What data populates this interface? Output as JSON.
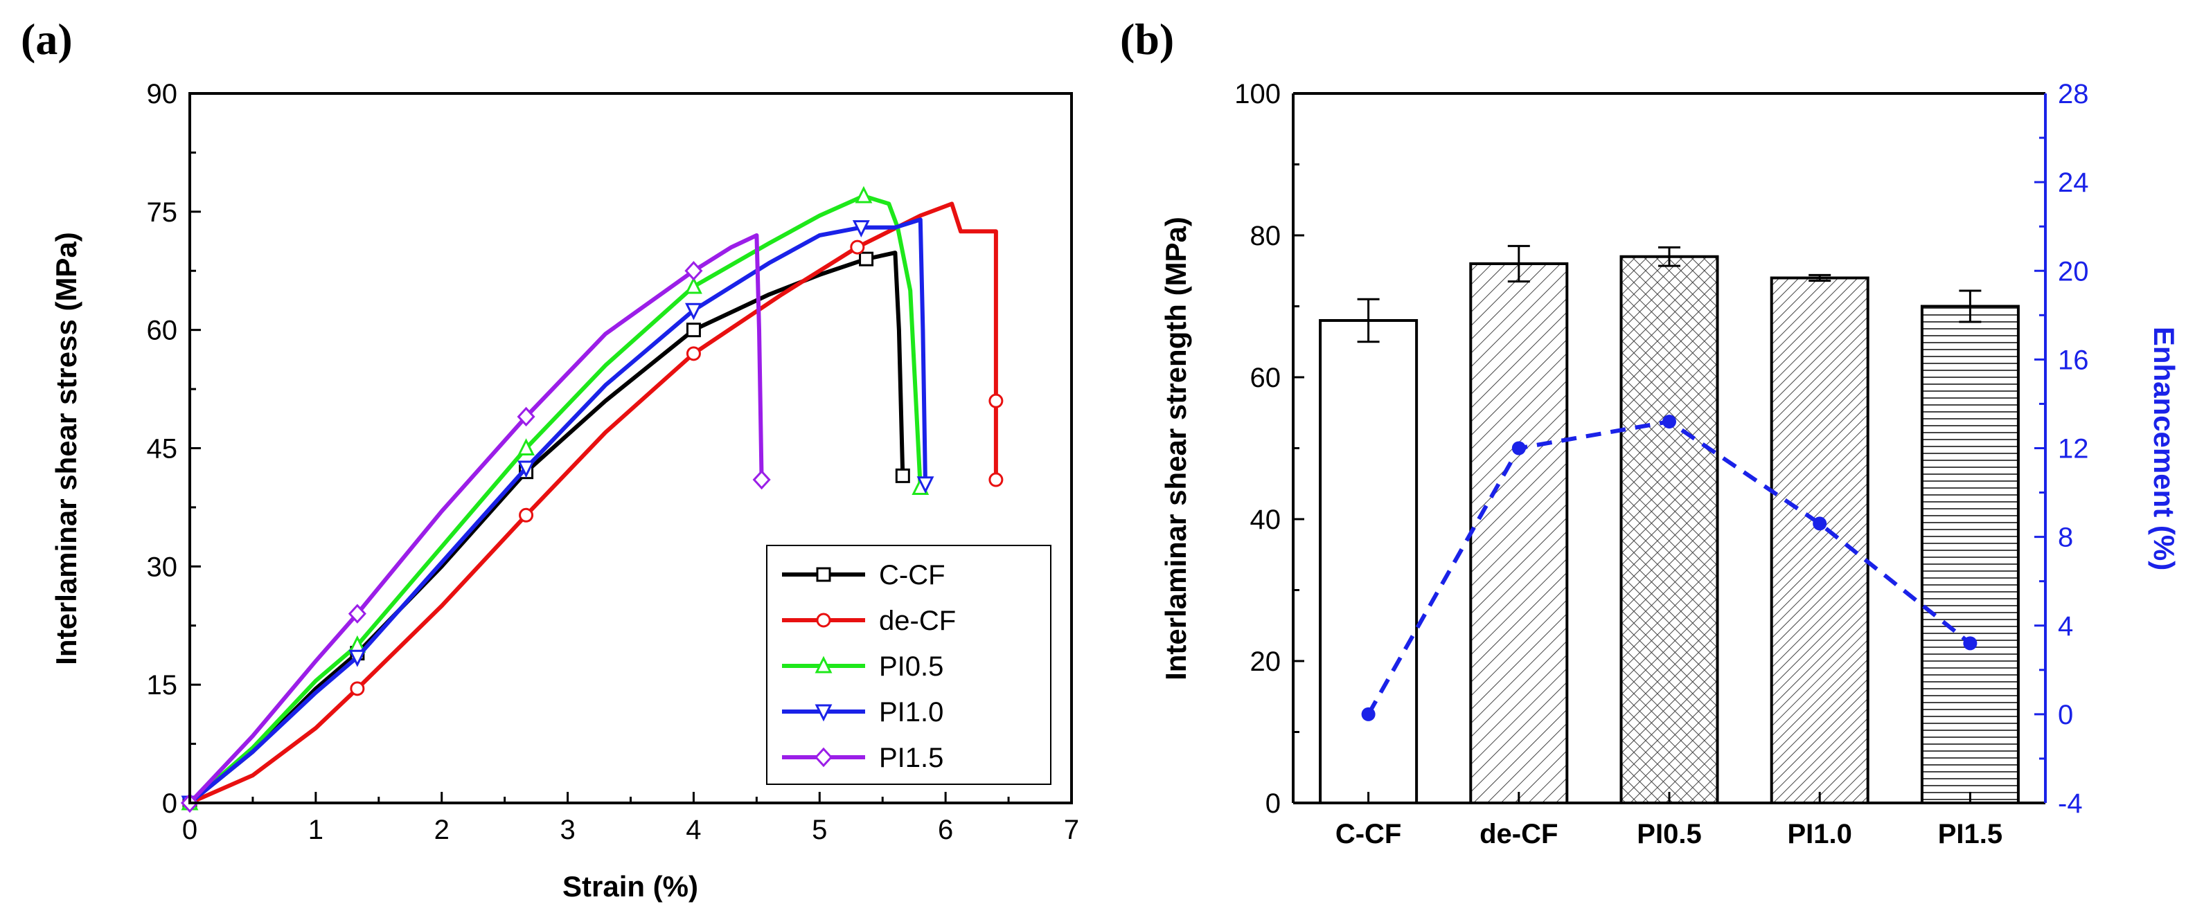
{
  "chart_data": [
    {
      "panel": "(a)",
      "type": "line",
      "xlabel": "Strain (%)",
      "ylabel": "Interlaminar shear stress (MPa)",
      "xlim": [
        0,
        7
      ],
      "ylim": [
        0,
        90
      ],
      "xticks": [
        0,
        1,
        2,
        3,
        4,
        5,
        6,
        7
      ],
      "yticks": [
        0,
        15,
        30,
        45,
        60,
        75,
        90
      ],
      "legend_position": "bottom-right",
      "series": [
        {
          "name": "C-CF",
          "color": "#000000",
          "marker": "square",
          "x": [
            0,
            0.5,
            1.0,
            1.33,
            2.0,
            2.67,
            3.3,
            4.0,
            4.6,
            5.0,
            5.37,
            5.6,
            5.63,
            5.66
          ],
          "y": [
            0,
            6.5,
            14.5,
            19,
            30,
            42,
            51,
            60,
            64.5,
            67,
            69,
            69.8,
            60,
            41.5
          ],
          "marker_x": [
            0,
            1.33,
            2.67,
            4.0,
            5.37,
            5.66
          ],
          "marker_y": [
            0,
            19,
            42,
            60,
            69,
            41.5
          ]
        },
        {
          "name": "de-CF",
          "color": "#e81010",
          "marker": "circle",
          "x": [
            0,
            0.5,
            1.0,
            1.33,
            2.0,
            2.67,
            3.3,
            4.0,
            4.7,
            5.3,
            5.8,
            6.05,
            6.12,
            6.4,
            6.4,
            6.4
          ],
          "y": [
            0,
            3.5,
            9.5,
            14.5,
            25,
            36.5,
            47,
            57,
            64.5,
            70.5,
            74.5,
            76,
            72.5,
            72.5,
            51,
            41
          ],
          "marker_x": [
            0,
            1.33,
            2.67,
            4.0,
            5.3,
            6.4,
            6.4
          ],
          "marker_y": [
            0,
            14.5,
            36.5,
            57,
            70.5,
            51,
            41
          ]
        },
        {
          "name": "PI0.5",
          "color": "#1ee81a",
          "marker": "triangle-up",
          "x": [
            0,
            0.5,
            1.0,
            1.33,
            2.0,
            2.67,
            3.3,
            4.0,
            4.6,
            5.0,
            5.35,
            5.55,
            5.62,
            5.72,
            5.8
          ],
          "y": [
            0,
            7,
            15.5,
            20,
            32.5,
            45,
            55.5,
            65.5,
            71,
            74.5,
            77,
            76,
            73,
            65,
            40
          ],
          "marker_x": [
            0,
            1.33,
            2.67,
            4.0,
            5.35,
            5.8
          ],
          "marker_y": [
            0,
            20,
            45,
            65.5,
            77,
            40
          ]
        },
        {
          "name": "PI1.0",
          "color": "#1a22e8",
          "marker": "triangle-down",
          "x": [
            0,
            0.5,
            1.0,
            1.33,
            2.0,
            2.67,
            3.3,
            4.0,
            4.6,
            5.0,
            5.33,
            5.6,
            5.8,
            5.82,
            5.84
          ],
          "y": [
            0,
            6.5,
            14,
            18.5,
            30.5,
            42.5,
            53,
            62.5,
            68.5,
            72,
            73,
            73,
            74,
            60,
            40.5
          ],
          "marker_x": [
            0,
            1.33,
            2.67,
            4.0,
            5.33,
            5.84
          ],
          "marker_y": [
            0,
            18.5,
            42.5,
            62.5,
            73,
            40.5
          ]
        },
        {
          "name": "PI1.5",
          "color": "#9b1ee8",
          "marker": "diamond",
          "x": [
            0,
            0.5,
            1.0,
            1.33,
            2.0,
            2.67,
            3.3,
            4.0,
            4.3,
            4.5,
            4.52,
            4.54
          ],
          "y": [
            0,
            8.5,
            18,
            24,
            37,
            49,
            59.5,
            67.5,
            70.5,
            72,
            60,
            41
          ],
          "marker_x": [
            0,
            1.33,
            2.67,
            4.0,
            4.54
          ],
          "marker_y": [
            0,
            24,
            49,
            67.5,
            41
          ]
        }
      ]
    },
    {
      "panel": "(b)",
      "type": "bar",
      "categories": [
        "C-CF",
        "de-CF",
        "PI0.5",
        "PI1.0",
        "PI1.5"
      ],
      "values": [
        68,
        76,
        77,
        74,
        70
      ],
      "errors": [
        3,
        2.5,
        1.3,
        0.4,
        2.2
      ],
      "patterns": [
        "none",
        "diag-right",
        "crosshatch",
        "diag-right-dense",
        "horizontal"
      ],
      "ylabel": "Interlaminar shear strength (MPa)",
      "ylim": [
        0,
        100
      ],
      "yticks": [
        0,
        20,
        40,
        60,
        80,
        100
      ],
      "secondary": {
        "ylabel": "Enhancement (%)",
        "ylim": [
          -4,
          28
        ],
        "yticks": [
          -4,
          0,
          4,
          8,
          12,
          16,
          20,
          24,
          28
        ],
        "values": [
          0,
          12,
          13.2,
          8.6,
          3.2
        ],
        "color": "#1a22e8"
      }
    }
  ]
}
